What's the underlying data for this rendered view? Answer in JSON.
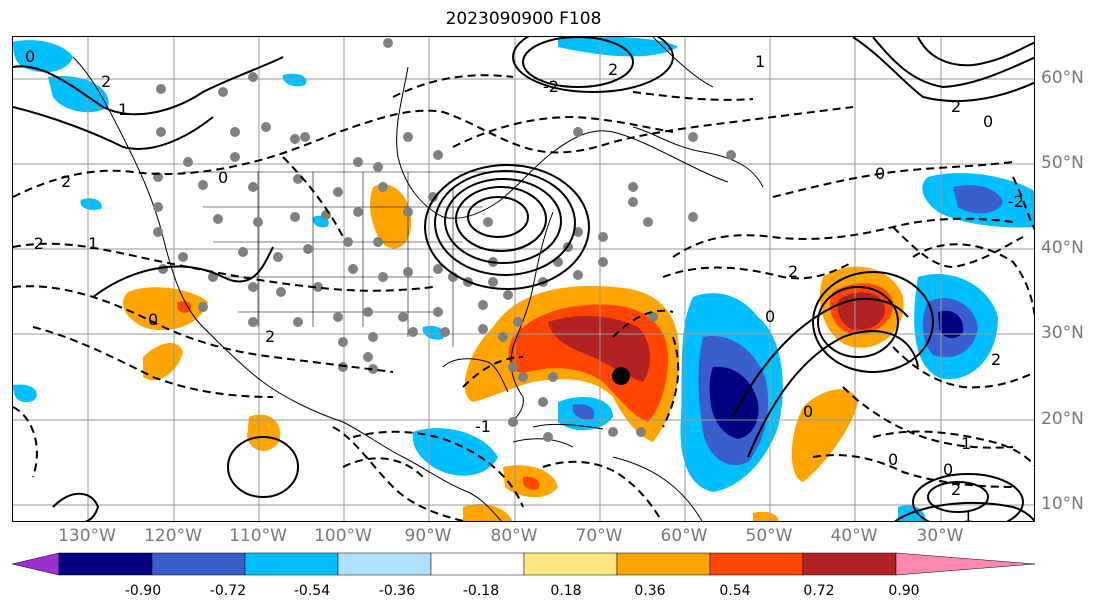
{
  "title": "2023090900 F108",
  "map": {
    "lon_labels": [
      "130°W",
      "120°W",
      "110°W",
      "100°W",
      "90°W",
      "80°W",
      "70°W",
      "60°W",
      "50°W",
      "40°W",
      "30°W"
    ],
    "lat_labels": [
      "60°N",
      "50°N",
      "40°N",
      "30°N",
      "20°N",
      "10°N"
    ],
    "contour_labels": [
      "0",
      "2",
      "1",
      "0",
      "2",
      "1",
      "0",
      "2",
      "-2",
      "2",
      "-2",
      "1",
      "0",
      "2",
      "0",
      "-1",
      "-2",
      "0",
      "1",
      "0",
      "2",
      "1",
      "0",
      "2",
      "0",
      "2"
    ],
    "storm_marker": "tropical-cyclone-center"
  },
  "colorbar": {
    "tick_labels": [
      "-0.90",
      "-0.72",
      "-0.54",
      "-0.36",
      "-0.18",
      "0.18",
      "0.36",
      "0.54",
      "0.72",
      "0.90"
    ],
    "colors": [
      "#9b30d0",
      "#000080",
      "#3a5fcd",
      "#00bfff",
      "#b0e0ff",
      "#ffffff",
      "#ffe680",
      "#ffa500",
      "#ff4500",
      "#b22222",
      "#ff88b0"
    ],
    "extend": "both"
  }
}
